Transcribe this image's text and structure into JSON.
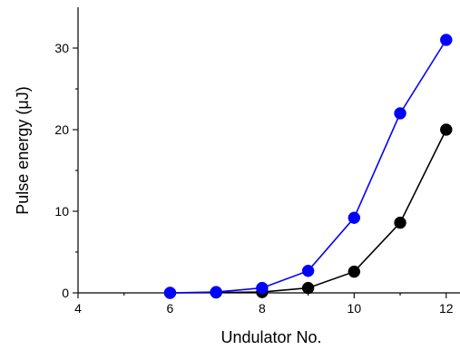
{
  "chart_data": {
    "type": "line",
    "title": "",
    "xlabel": "Undulator No.",
    "ylabel": "Pulse energy (μJ)",
    "xlim": [
      4,
      12.3
    ],
    "ylim": [
      0,
      35
    ],
    "x_ticks": [
      4,
      6,
      8,
      10,
      12
    ],
    "x_tick_labels": [
      "4",
      "6",
      "8",
      "10",
      "12"
    ],
    "x_minor_ticks": [
      5,
      7,
      9,
      11
    ],
    "y_ticks": [
      0,
      10,
      20,
      30
    ],
    "y_tick_labels": [
      "0",
      "10",
      "20",
      "30"
    ],
    "y_minor_ticks": [
      5,
      15,
      25
    ],
    "grid": false,
    "legend": "none",
    "markers": "filled-circle",
    "series": [
      {
        "color": "#0000ff",
        "x": [
          6,
          7,
          8,
          9,
          10,
          11,
          12
        ],
        "values": [
          0.0,
          0.1,
          0.6,
          2.7,
          9.2,
          22.0,
          31.0
        ]
      },
      {
        "color": "#000000",
        "x": [
          6,
          7,
          8,
          9,
          10,
          11,
          12
        ],
        "values": [
          0.0,
          0.05,
          0.1,
          0.6,
          2.6,
          8.6,
          20.0
        ]
      }
    ]
  }
}
